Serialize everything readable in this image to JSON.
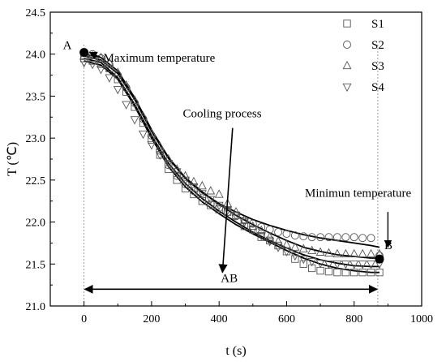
{
  "chart_data": {
    "type": "scatter",
    "title": "",
    "xlabel": "t (s)",
    "ylabel": "T (℃)",
    "xlim": [
      -100,
      1000
    ],
    "ylim": [
      21.0,
      24.5
    ],
    "xticks": [
      0,
      200,
      400,
      600,
      800,
      1000
    ],
    "yticks": [
      21.0,
      21.5,
      22.0,
      22.5,
      23.0,
      23.5,
      24.0,
      24.5
    ],
    "xtick_labels": [
      "0",
      "200",
      "400",
      "600",
      "800",
      "1000"
    ],
    "ytick_labels": [
      "21.0",
      "21.5",
      "22.0",
      "22.5",
      "23.0",
      "23.5",
      "24.0",
      "24.5"
    ],
    "legend_position": "top-right",
    "series": [
      {
        "name": "S1",
        "marker": "square",
        "x": [
          0,
          25,
          50,
          75,
          100,
          125,
          150,
          175,
          200,
          225,
          250,
          275,
          300,
          325,
          350,
          375,
          400,
          425,
          450,
          475,
          500,
          525,
          550,
          575,
          600,
          625,
          650,
          675,
          700,
          725,
          750,
          775,
          800,
          825,
          850,
          875
        ],
        "y": [
          23.95,
          23.92,
          23.88,
          23.83,
          23.7,
          23.55,
          23.37,
          23.18,
          22.98,
          22.8,
          22.63,
          22.5,
          22.4,
          22.33,
          22.25,
          22.2,
          22.15,
          22.12,
          22.08,
          21.95,
          21.91,
          21.82,
          21.78,
          21.72,
          21.65,
          21.56,
          21.5,
          21.45,
          21.42,
          21.41,
          21.4,
          21.4,
          21.4,
          21.4,
          21.4,
          21.4
        ]
      },
      {
        "name": "S2",
        "marker": "circle",
        "x": [
          0,
          25,
          50,
          75,
          100,
          125,
          150,
          175,
          200,
          225,
          250,
          275,
          300,
          325,
          350,
          375,
          400,
          425,
          450,
          475,
          500,
          525,
          550,
          575,
          600,
          625,
          650,
          675,
          700,
          725,
          750,
          775,
          800,
          825,
          850,
          875
        ],
        "y": [
          24.02,
          24.0,
          23.95,
          23.88,
          23.75,
          23.6,
          23.42,
          23.23,
          23.03,
          22.85,
          22.68,
          22.55,
          22.45,
          22.37,
          22.29,
          22.22,
          22.17,
          22.12,
          22.07,
          22.02,
          21.98,
          21.94,
          21.91,
          21.88,
          21.86,
          21.84,
          21.83,
          21.82,
          21.82,
          21.82,
          21.82,
          21.82,
          21.82,
          21.81,
          21.81,
          21.6
        ]
      },
      {
        "name": "S3",
        "marker": "triangle-up",
        "x": [
          0,
          25,
          50,
          75,
          100,
          125,
          150,
          175,
          200,
          225,
          250,
          275,
          300,
          325,
          350,
          375,
          400,
          425,
          450,
          475,
          500,
          525,
          550,
          575,
          600,
          625,
          650,
          675,
          700,
          725,
          750,
          775,
          800,
          825,
          850,
          875
        ],
        "y": [
          23.98,
          23.98,
          23.96,
          23.9,
          23.78,
          23.63,
          23.45,
          23.26,
          23.06,
          22.9,
          22.75,
          22.63,
          22.55,
          22.48,
          22.43,
          22.37,
          22.33,
          22.22,
          22.12,
          22.02,
          21.95,
          21.9,
          21.82,
          21.77,
          21.73,
          21.7,
          21.68,
          21.66,
          21.64,
          21.63,
          21.62,
          21.62,
          21.62,
          21.62,
          21.62,
          21.62
        ]
      },
      {
        "name": "S4",
        "marker": "triangle-down",
        "x": [
          0,
          25,
          50,
          75,
          100,
          125,
          150,
          175,
          200,
          225,
          250,
          275,
          300,
          325,
          350,
          375,
          400,
          425,
          450,
          475,
          500,
          525,
          550,
          575,
          600,
          625,
          650,
          675,
          700,
          725,
          750,
          775,
          800,
          825,
          850,
          875
        ],
        "y": [
          23.9,
          23.88,
          23.82,
          23.72,
          23.58,
          23.4,
          23.22,
          23.05,
          22.92,
          22.8,
          22.7,
          22.6,
          22.5,
          22.42,
          22.34,
          22.27,
          22.2,
          22.14,
          22.08,
          22.0,
          21.91,
          21.84,
          21.77,
          21.7,
          21.65,
          21.6,
          21.56,
          21.53,
          21.51,
          21.5,
          21.5,
          21.5,
          21.5,
          21.5,
          21.5,
          21.5
        ]
      }
    ],
    "fit_curves": [
      {
        "x": [
          0,
          50,
          100,
          150,
          200,
          250,
          300,
          350,
          400,
          450,
          500,
          550,
          600,
          650,
          700,
          750,
          800,
          850,
          875
        ],
        "y": [
          23.92,
          23.87,
          23.7,
          23.38,
          23.0,
          22.66,
          22.42,
          22.24,
          22.1,
          21.97,
          21.86,
          21.76,
          21.66,
          21.57,
          21.5,
          21.45,
          21.42,
          21.4,
          21.4
        ]
      },
      {
        "x": [
          0,
          50,
          100,
          150,
          200,
          250,
          300,
          350,
          400,
          450,
          500,
          550,
          600,
          650,
          700,
          750,
          800,
          850,
          875
        ],
        "y": [
          23.98,
          23.93,
          23.77,
          23.46,
          23.08,
          22.76,
          22.52,
          22.35,
          22.22,
          22.12,
          22.03,
          21.96,
          21.9,
          21.85,
          21.81,
          21.78,
          21.75,
          21.72,
          21.7
        ]
      },
      {
        "x": [
          0,
          50,
          100,
          150,
          200,
          250,
          300,
          350,
          400,
          450,
          500,
          550,
          600,
          650,
          700,
          750,
          800,
          850,
          875
        ],
        "y": [
          24.0,
          23.96,
          23.8,
          23.48,
          23.1,
          22.77,
          22.53,
          22.36,
          22.21,
          22.08,
          21.97,
          21.87,
          21.78,
          21.7,
          21.65,
          21.61,
          21.59,
          21.57,
          21.57
        ]
      },
      {
        "x": [
          0,
          50,
          100,
          150,
          200,
          250,
          300,
          350,
          400,
          450,
          500,
          550,
          600,
          650,
          700,
          750,
          800,
          850,
          875
        ],
        "y": [
          23.95,
          23.9,
          23.72,
          23.4,
          23.03,
          22.7,
          22.46,
          22.28,
          22.13,
          22.0,
          21.88,
          21.78,
          21.69,
          21.61,
          21.55,
          21.51,
          21.48,
          21.47,
          21.47
        ]
      }
    ],
    "highlight_points": [
      {
        "label": "A",
        "x": 0,
        "y": 24.02
      },
      {
        "label": "B",
        "x": 875,
        "y": 21.56
      }
    ],
    "annotations": {
      "max_label": "Maximum temperature",
      "min_label": "Minimun temperature",
      "process_label": "Cooling process",
      "ab_label": "AB",
      "point_a": "A",
      "point_b": "B",
      "max_arrow_text_at": {
        "x": 50,
        "y": 23.96
      },
      "cooling_arrow": {
        "x0": 440,
        "y0": 23.12,
        "x1": 410,
        "y1": 21.4
      },
      "min_arrow": {
        "x": 900,
        "y0": 22.12,
        "y1": 21.7
      },
      "ab_arrow": {
        "x0": 0,
        "x1": 870,
        "y": 21.2
      },
      "ref_lines_x": [
        0,
        870
      ]
    }
  }
}
